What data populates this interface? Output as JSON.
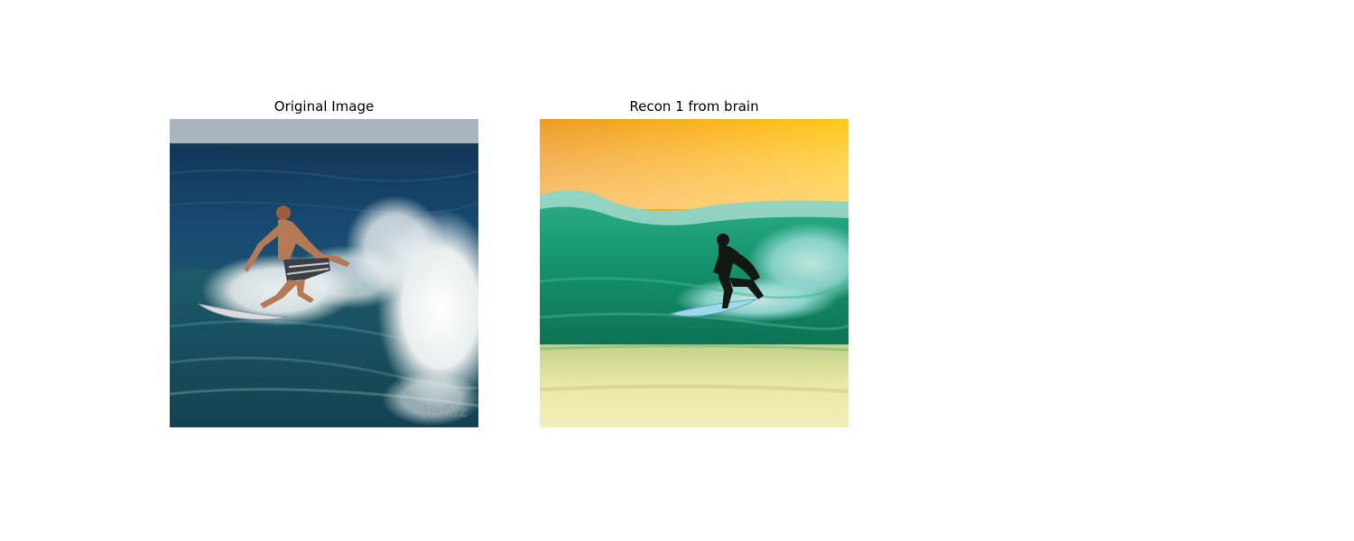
{
  "panels": [
    {
      "title": "Original Image",
      "scene": "surfer in swim shorts riding a white-crested wave on deep blue ocean under a pale sky",
      "palette": {
        "sky": "#a8b4bd",
        "sea_top": "#143a5c",
        "sea_bottom": "#2a6c78",
        "foam": "#f2f4f2",
        "skin": "#b57a55"
      },
      "watermark": "Jisfilz"
    },
    {
      "title": "Recon 1 from brain",
      "scene": "surfer in black wetsuit riding inside a green barrel wave under an orange sunset sky",
      "palette": {
        "sky_left": "#f09f25",
        "sky_right": "#ffc61a",
        "wave": "#1c9e78",
        "wave_light": "#7ed6d6",
        "foam": "#dff2f0",
        "sand": "#e8e6a0"
      }
    }
  ]
}
